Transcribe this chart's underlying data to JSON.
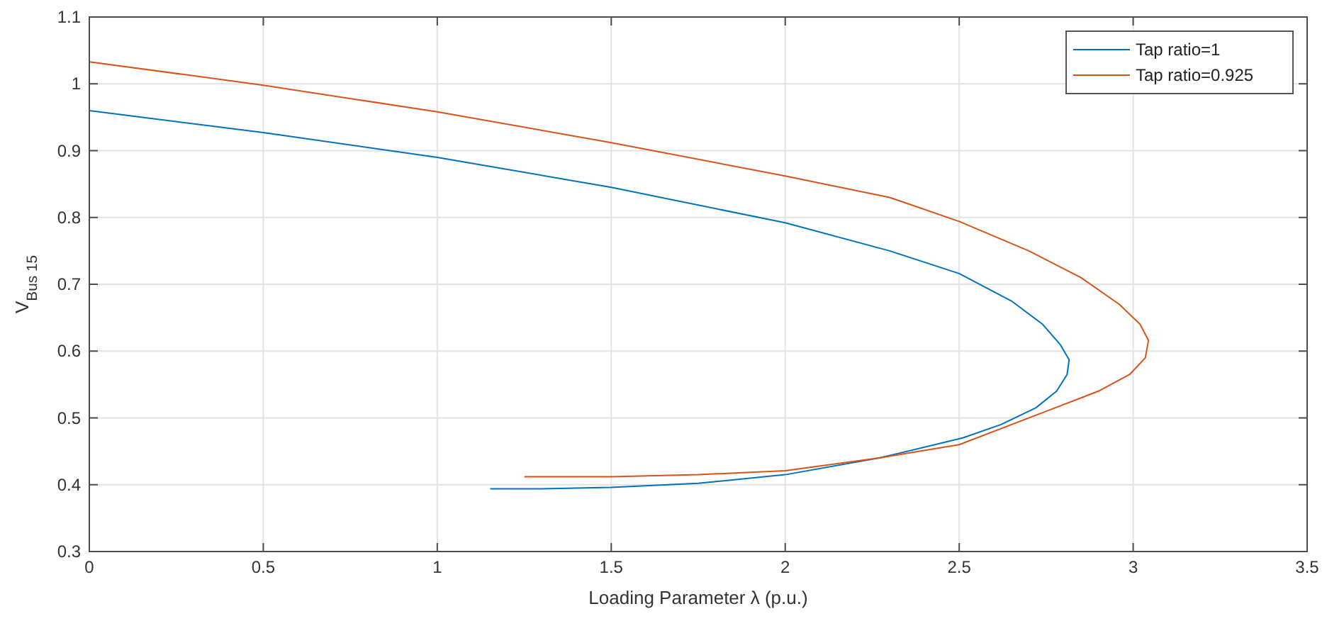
{
  "chart_data": {
    "type": "line",
    "xlabel": "Loading Parameter  λ (p.u.)",
    "ylabel": "V$_{Bus 15}$",
    "xlim": [
      0,
      3.5
    ],
    "ylim": [
      0.3,
      1.1
    ],
    "xticks": [
      0,
      0.5,
      1,
      1.5,
      2,
      2.5,
      3,
      3.5
    ],
    "yticks": [
      0.3,
      0.4,
      0.5,
      0.6,
      0.7,
      0.8,
      0.9,
      1,
      1.1
    ],
    "grid": true,
    "legend": "top right",
    "series": [
      {
        "name": "Tap ratio=1",
        "color": "#0072bd",
        "x": [
          0,
          0.5,
          1,
          1.5,
          2,
          2.3,
          2.5,
          2.65,
          2.74,
          2.79,
          2.816,
          2.81,
          2.78,
          2.72,
          2.62,
          2.51,
          2.27,
          2,
          1.75,
          1.5,
          1.3,
          1.152
        ],
        "values": [
          0.96,
          0.927,
          0.89,
          0.845,
          0.792,
          0.75,
          0.716,
          0.675,
          0.64,
          0.61,
          0.587,
          0.565,
          0.54,
          0.515,
          0.49,
          0.47,
          0.44,
          0.415,
          0.402,
          0.396,
          0.394,
          0.394
        ]
      },
      {
        "name": "Tap ratio=0.925",
        "color": "#d95319",
        "x": [
          0,
          0.5,
          1,
          1.5,
          2,
          2.3,
          2.5,
          2.7,
          2.85,
          2.96,
          3.02,
          3.044,
          3.035,
          2.99,
          2.9,
          2.75,
          2.5,
          2.27,
          2,
          1.75,
          1.5,
          1.25
        ],
        "values": [
          1.033,
          0.998,
          0.958,
          0.912,
          0.862,
          0.83,
          0.794,
          0.75,
          0.71,
          0.67,
          0.64,
          0.616,
          0.59,
          0.565,
          0.54,
          0.51,
          0.46,
          0.44,
          0.421,
          0.415,
          0.412,
          0.412
        ]
      }
    ]
  }
}
